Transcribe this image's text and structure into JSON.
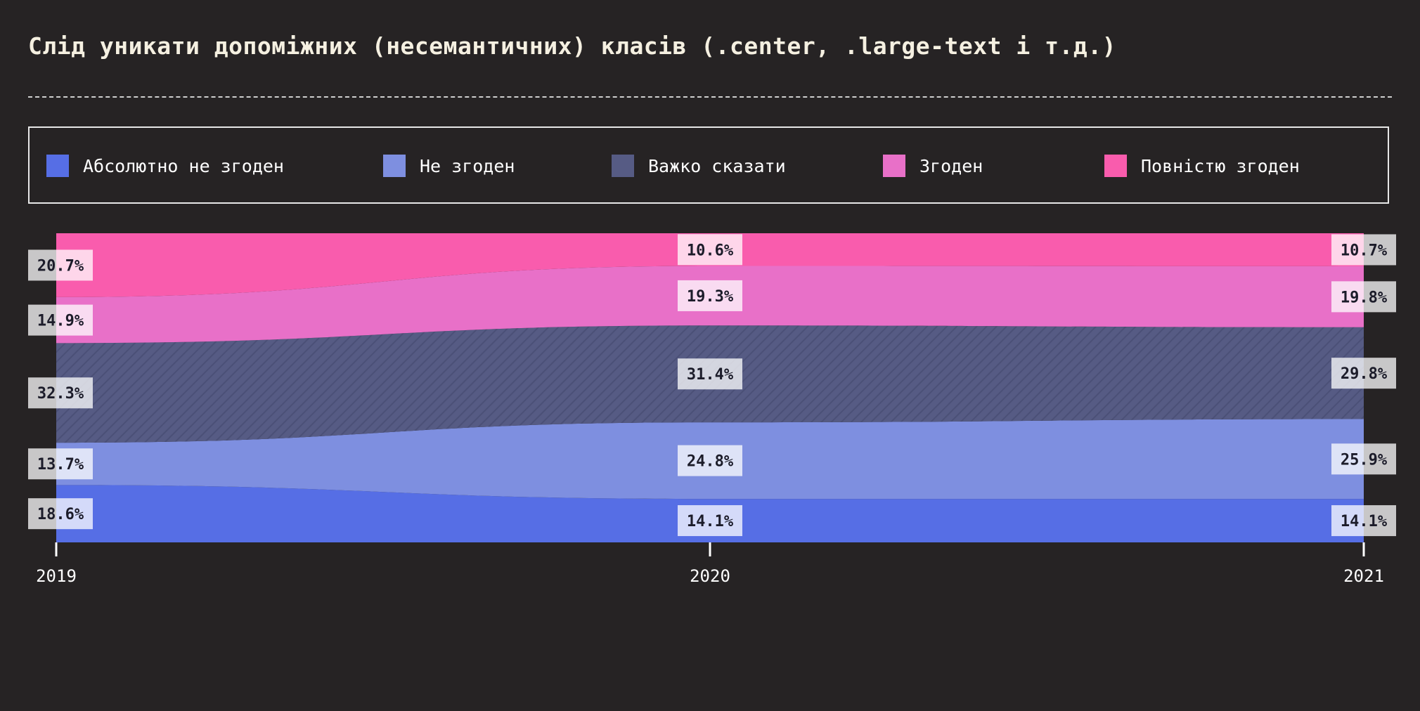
{
  "chart_data": {
    "type": "area",
    "title": "Слід уникати допоміжних (несемантичних) класів (.center, .large-text і т.д.)",
    "stacked": "percent",
    "x": [
      "2019",
      "2020",
      "2021"
    ],
    "legend_position": "top",
    "series": [
      {
        "name": "Абсолютно не згоден",
        "color": "#566ee5",
        "values": [
          18.6,
          14.1,
          14.1
        ]
      },
      {
        "name": "Не згоден",
        "color": "#7e8fe0",
        "values": [
          13.7,
          24.8,
          25.9
        ]
      },
      {
        "name": "Важко сказати",
        "color": "#565b84",
        "values": [
          32.3,
          31.4,
          29.8
        ]
      },
      {
        "name": "Згоден",
        "color": "#e870c8",
        "values": [
          14.9,
          19.3,
          19.8
        ]
      },
      {
        "name": "Повністю згоден",
        "color": "#f95cad",
        "values": [
          20.7,
          10.6,
          10.7
        ]
      }
    ],
    "value_suffix": "%"
  }
}
